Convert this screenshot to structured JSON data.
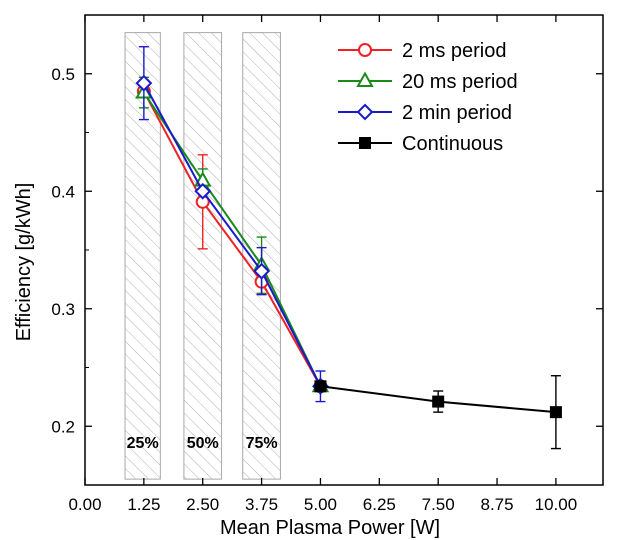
{
  "chart_data": {
    "type": "line",
    "xlabel": "Mean Plasma Power [W]",
    "ylabel": "Efficiency [g/kWh]",
    "xlim": [
      0,
      11.0
    ],
    "ylim": [
      0.15,
      0.55
    ],
    "x_ticks": [
      "0.00",
      "1.25",
      "2.50",
      "3.75",
      "5.00",
      "6.25",
      "7.50",
      "8.75",
      "10.00"
    ],
    "y_ticks": [
      "0.2",
      "0.3",
      "0.4",
      "0.5"
    ],
    "duty_cycle_bands": [
      {
        "label": "25%",
        "x_from": 0.85,
        "x_to": 1.6
      },
      {
        "label": "50%",
        "x_from": 2.1,
        "x_to": 2.9
      },
      {
        "label": "75%",
        "x_from": 3.35,
        "x_to": 4.15
      }
    ],
    "legend_position": "top-right",
    "series": [
      {
        "name": "2 ms period",
        "color": "#ee2222",
        "marker": "circle-open",
        "points": [
          {
            "x": 1.25,
            "y": 0.485,
            "err": 0.0
          },
          {
            "x": 2.5,
            "y": 0.391,
            "err": 0.04
          },
          {
            "x": 3.75,
            "y": 0.323,
            "err": 0.01
          },
          {
            "x": 5.0,
            "y": 0.234,
            "err": 0.0
          }
        ]
      },
      {
        "name": "20 ms period",
        "color": "#1a8a1a",
        "marker": "triangle-open",
        "points": [
          {
            "x": 1.25,
            "y": 0.484,
            "err": 0.013
          },
          {
            "x": 2.5,
            "y": 0.409,
            "err": 0.01
          },
          {
            "x": 3.75,
            "y": 0.337,
            "err": 0.024
          },
          {
            "x": 5.0,
            "y": 0.234,
            "err": 0.0
          }
        ]
      },
      {
        "name": "2 min period",
        "color": "#1a1acc",
        "marker": "diamond-open",
        "points": [
          {
            "x": 1.25,
            "y": 0.492,
            "err": 0.031
          },
          {
            "x": 2.5,
            "y": 0.4,
            "err": 0.0
          },
          {
            "x": 3.75,
            "y": 0.332,
            "err": 0.02
          },
          {
            "x": 5.0,
            "y": 0.234,
            "err": 0.013
          }
        ]
      },
      {
        "name": "Continuous",
        "color": "#000000",
        "marker": "square-filled",
        "points": [
          {
            "x": 5.0,
            "y": 0.234,
            "err": 0.0
          },
          {
            "x": 7.5,
            "y": 0.221,
            "err": 0.009
          },
          {
            "x": 10.0,
            "y": 0.212,
            "err": 0.031
          }
        ]
      }
    ]
  }
}
